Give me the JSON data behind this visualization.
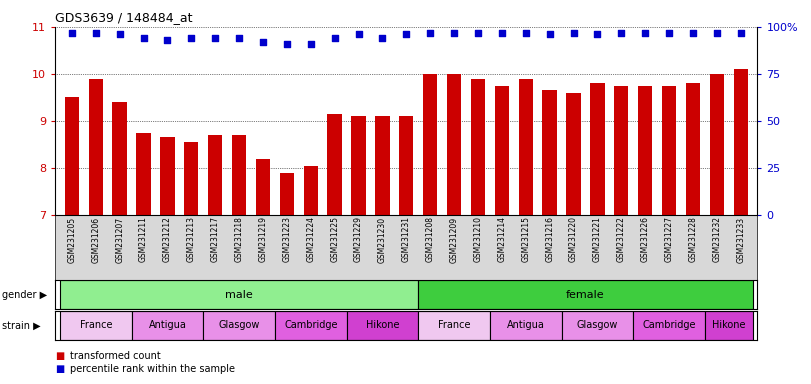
{
  "title": "GDS3639 / 148484_at",
  "samples": [
    "GSM231205",
    "GSM231206",
    "GSM231207",
    "GSM231211",
    "GSM231212",
    "GSM231213",
    "GSM231217",
    "GSM231218",
    "GSM231219",
    "GSM231223",
    "GSM231224",
    "GSM231225",
    "GSM231229",
    "GSM231230",
    "GSM231231",
    "GSM231208",
    "GSM231209",
    "GSM231210",
    "GSM231214",
    "GSM231215",
    "GSM231216",
    "GSM231220",
    "GSM231221",
    "GSM231222",
    "GSM231226",
    "GSM231227",
    "GSM231228",
    "GSM231232",
    "GSM231233"
  ],
  "bar_values": [
    9.5,
    9.9,
    9.4,
    8.75,
    8.65,
    8.55,
    8.7,
    8.7,
    8.2,
    7.9,
    8.05,
    9.15,
    9.1,
    9.1,
    9.1,
    10.0,
    10.0,
    9.9,
    9.75,
    9.9,
    9.65,
    9.6,
    9.8,
    9.75,
    9.75,
    9.75,
    9.8,
    10.0,
    10.1
  ],
  "percentile_values": [
    97,
    97,
    96,
    94,
    93,
    94,
    94,
    94,
    92,
    91,
    91,
    94,
    96,
    94,
    96,
    97,
    97,
    97,
    97,
    97,
    96,
    97,
    96,
    97,
    97,
    97,
    97,
    97,
    97
  ],
  "bar_color": "#cc0000",
  "dot_color": "#0000cc",
  "ylim_left": [
    7,
    11
  ],
  "ylim_right": [
    0,
    100
  ],
  "yticks_left": [
    7,
    8,
    9,
    10,
    11
  ],
  "yticks_right": [
    0,
    25,
    50,
    75,
    100
  ],
  "gender_groups": [
    {
      "label": "male",
      "start": 0,
      "end": 14,
      "color": "#90ee90"
    },
    {
      "label": "female",
      "start": 15,
      "end": 28,
      "color": "#3ecd3e"
    }
  ],
  "strain_colors": {
    "France": "#f0c8f0",
    "Antigua": "#e890e8",
    "Glasgow": "#e890e8",
    "Cambridge": "#e060e0",
    "Hikone": "#d040d0"
  },
  "strain_groups": [
    {
      "label": "France",
      "start": 0,
      "end": 2
    },
    {
      "label": "Antigua",
      "start": 3,
      "end": 5
    },
    {
      "label": "Glasgow",
      "start": 6,
      "end": 8
    },
    {
      "label": "Cambridge",
      "start": 9,
      "end": 11
    },
    {
      "label": "Hikone",
      "start": 12,
      "end": 14
    },
    {
      "label": "France",
      "start": 15,
      "end": 17
    },
    {
      "label": "Antigua",
      "start": 18,
      "end": 20
    },
    {
      "label": "Glasgow",
      "start": 21,
      "end": 23
    },
    {
      "label": "Cambridge",
      "start": 24,
      "end": 26
    },
    {
      "label": "Hikone",
      "start": 27,
      "end": 28
    }
  ],
  "legend_bar_label": "transformed count",
  "legend_dot_label": "percentile rank within the sample",
  "gridline_y": [
    8,
    9,
    10,
    11
  ],
  "xticklabel_fontsize": 5.5,
  "bar_width": 0.6
}
